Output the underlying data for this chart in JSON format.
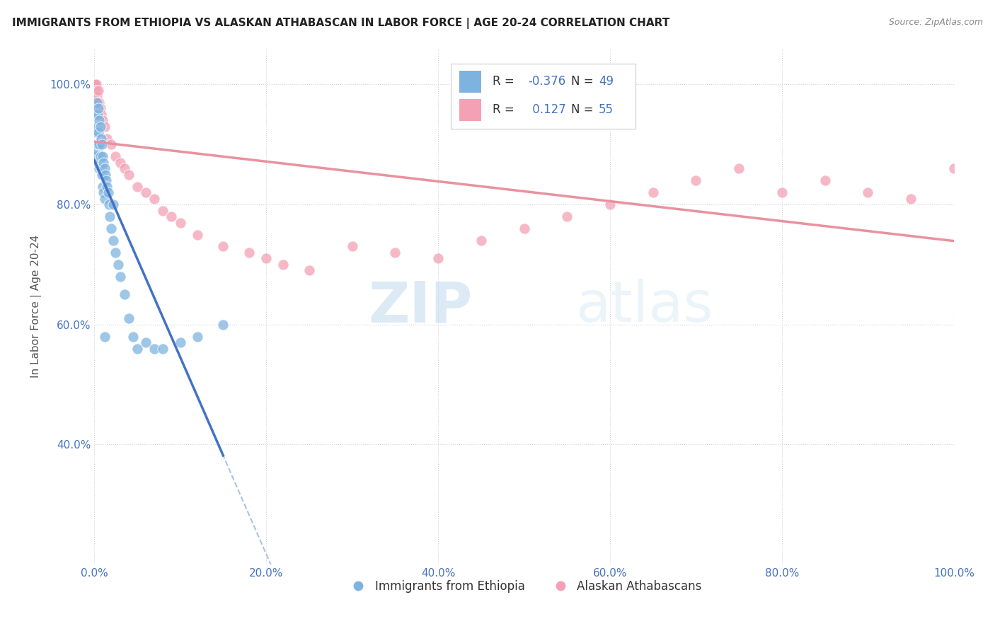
{
  "title": "IMMIGRANTS FROM ETHIOPIA VS ALASKAN ATHABASCAN IN LABOR FORCE | AGE 20-24 CORRELATION CHART",
  "source": "Source: ZipAtlas.com",
  "ylabel": "In Labor Force | Age 20-24",
  "xlim": [
    0.0,
    1.0
  ],
  "ylim": [
    0.2,
    1.06
  ],
  "x_tick_labels": [
    "0.0%",
    "20.0%",
    "40.0%",
    "60.0%",
    "80.0%",
    "100.0%"
  ],
  "x_tick_vals": [
    0.0,
    0.2,
    0.4,
    0.6,
    0.8,
    1.0
  ],
  "y_tick_labels": [
    "40.0%",
    "60.0%",
    "80.0%",
    "100.0%"
  ],
  "y_tick_vals": [
    0.4,
    0.6,
    0.8,
    1.0
  ],
  "ethiopia_color": "#7EB3E0",
  "athabascan_color": "#F4A0B5",
  "ethiopia_line_color": "#4472C4",
  "athabascan_line_color": "#E8929F",
  "dashed_line_color": "#A8C4E0",
  "watermark_zip": "ZIP",
  "watermark_atlas": "atlas",
  "legend_label_ethiopia": "Immigrants from Ethiopia",
  "legend_label_athabascan": "Alaskan Athabascans",
  "ethiopia_scatter_x": [
    0.001,
    0.002,
    0.002,
    0.003,
    0.003,
    0.003,
    0.004,
    0.004,
    0.005,
    0.005,
    0.005,
    0.006,
    0.006,
    0.006,
    0.007,
    0.007,
    0.008,
    0.008,
    0.009,
    0.009,
    0.01,
    0.01,
    0.011,
    0.011,
    0.012,
    0.012,
    0.013,
    0.014,
    0.015,
    0.016,
    0.017,
    0.018,
    0.02,
    0.022,
    0.025,
    0.028,
    0.03,
    0.035,
    0.04,
    0.045,
    0.05,
    0.06,
    0.07,
    0.08,
    0.1,
    0.12,
    0.15,
    0.022,
    0.012
  ],
  "ethiopia_scatter_y": [
    0.95,
    0.92,
    0.88,
    0.97,
    0.93,
    0.89,
    0.95,
    0.9,
    0.96,
    0.92,
    0.87,
    0.94,
    0.9,
    0.86,
    0.93,
    0.88,
    0.91,
    0.86,
    0.9,
    0.85,
    0.88,
    0.83,
    0.87,
    0.82,
    0.86,
    0.81,
    0.85,
    0.84,
    0.83,
    0.82,
    0.8,
    0.78,
    0.76,
    0.74,
    0.72,
    0.7,
    0.68,
    0.65,
    0.61,
    0.58,
    0.56,
    0.57,
    0.56,
    0.56,
    0.57,
    0.58,
    0.6,
    0.8,
    0.58
  ],
  "athabascan_scatter_x": [
    0.0,
    0.0,
    0.0,
    0.0,
    0.0,
    0.0,
    0.0,
    0.0,
    0.0,
    0.0,
    0.001,
    0.001,
    0.002,
    0.002,
    0.003,
    0.004,
    0.005,
    0.006,
    0.007,
    0.008,
    0.01,
    0.012,
    0.015,
    0.02,
    0.025,
    0.03,
    0.035,
    0.04,
    0.05,
    0.06,
    0.07,
    0.08,
    0.09,
    0.1,
    0.12,
    0.15,
    0.18,
    0.2,
    0.22,
    0.25,
    0.3,
    0.35,
    0.4,
    0.45,
    0.5,
    0.55,
    0.6,
    0.65,
    0.7,
    0.75,
    0.8,
    0.85,
    0.9,
    0.95,
    1.0
  ],
  "athabascan_scatter_y": [
    1.0,
    1.0,
    1.0,
    1.0,
    0.99,
    0.99,
    0.99,
    0.98,
    0.98,
    0.97,
    1.0,
    0.99,
    1.0,
    0.99,
    0.98,
    0.97,
    0.99,
    0.97,
    0.96,
    0.95,
    0.94,
    0.93,
    0.91,
    0.9,
    0.88,
    0.87,
    0.86,
    0.85,
    0.83,
    0.82,
    0.81,
    0.79,
    0.78,
    0.77,
    0.75,
    0.73,
    0.72,
    0.71,
    0.7,
    0.69,
    0.73,
    0.72,
    0.71,
    0.74,
    0.76,
    0.78,
    0.8,
    0.82,
    0.84,
    0.86,
    0.82,
    0.84,
    0.82,
    0.81,
    0.86
  ]
}
